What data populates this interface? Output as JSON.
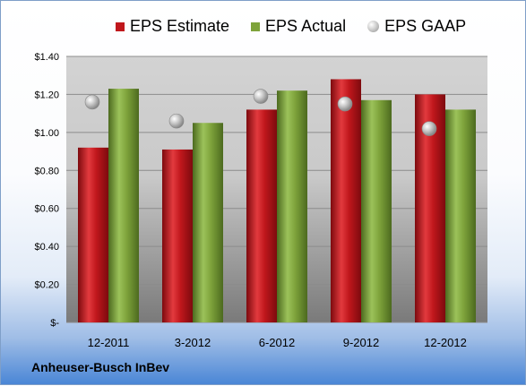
{
  "chart_data": {
    "type": "bar",
    "categories": [
      "12-2011",
      "3-2012",
      "6-2012",
      "9-2012",
      "12-2012"
    ],
    "series": [
      {
        "name": "EPS Estimate",
        "kind": "bar",
        "color": "#c0171c",
        "values": [
          0.92,
          0.91,
          1.12,
          1.28,
          1.2
        ]
      },
      {
        "name": "EPS Actual",
        "kind": "bar",
        "color": "#7ea33b",
        "values": [
          1.23,
          1.05,
          1.22,
          1.17,
          1.12
        ]
      },
      {
        "name": "EPS GAAP",
        "kind": "marker",
        "color": "#b5b5b5",
        "values": [
          1.16,
          1.06,
          1.19,
          1.15,
          1.02
        ]
      }
    ],
    "ylim": [
      0,
      1.4
    ],
    "yticks": [
      0,
      0.2,
      0.4,
      0.6,
      0.8,
      1.0,
      1.2,
      1.4
    ],
    "ytick_labels": [
      "$-",
      "$0.20",
      "$0.40",
      "$0.60",
      "$0.80",
      "$1.00",
      "$1.20",
      "$1.40"
    ],
    "grid": true,
    "legend_position": "top"
  },
  "footer": {
    "company": "Anheuser-Busch InBev"
  }
}
